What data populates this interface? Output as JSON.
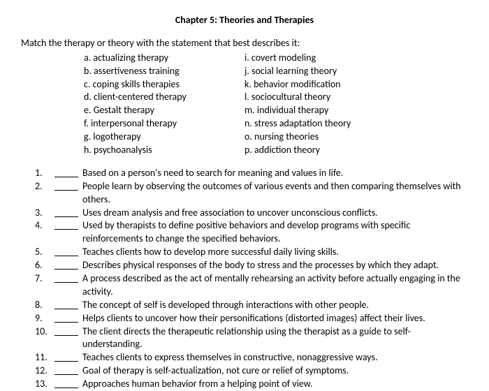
{
  "title": "Chapter 5: Theories and Therapies",
  "instructions": "Match the therapy or theory with the statement that best describes it:",
  "options_left": [
    "a. actualizing therapy",
    "b. assertiveness training",
    "c. coping skills therapies",
    "d. client-centered therapy",
    "e. Gestalt therapy",
    "f. interpersonal therapy",
    "g. logotherapy",
    "h. psychoanalysis"
  ],
  "options_right": [
    "i. covert modeling",
    "j. social learning theory",
    "k. behavior modification",
    "l. sociocultural theory",
    "m. individual therapy",
    "n. stress adaptation theory",
    "o. nursing theories",
    "p. addiction theory"
  ],
  "questions": [
    {
      "num": "1.",
      "text": "Based on a person's need to search for meaning and values in life."
    },
    {
      "num": "2.",
      "text": "People learn by observing the outcomes of various events and then comparing themselves with others."
    },
    {
      "num": "3.",
      "text": "Uses dream analysis and free association to uncover unconscious conflicts."
    },
    {
      "num": "4.",
      "text": "Used by therapists to define positive behaviors and develop programs with specific reinforcements to change the specified behaviors."
    },
    {
      "num": "5.",
      "text": "Teaches clients how to develop more successful daily living skills."
    },
    {
      "num": "6.",
      "text": "Describes physical responses of the body to stress and the processes by which they adapt."
    },
    {
      "num": "7.",
      "text": "A process described as the act of mentally rehearsing an activity before actually engaging in the activity."
    },
    {
      "num": "8.",
      "text": "The concept of self is developed through interactions with other people."
    },
    {
      "num": "9.",
      "text": "Helps clients to uncover how their personifications (distorted images) affect their lives."
    },
    {
      "num": "10.",
      "text": "The client directs the therapeutic relationship using the therapist as a guide to self-understanding."
    },
    {
      "num": "11.",
      "text": "Teaches clients to express themselves in constructive, nonaggressive ways."
    },
    {
      "num": "12.",
      "text": "Goal of therapy is self-actualization, not cure or relief of symptoms."
    },
    {
      "num": "13.",
      "text": "Approaches human behavior from a helping point of view."
    }
  ]
}
